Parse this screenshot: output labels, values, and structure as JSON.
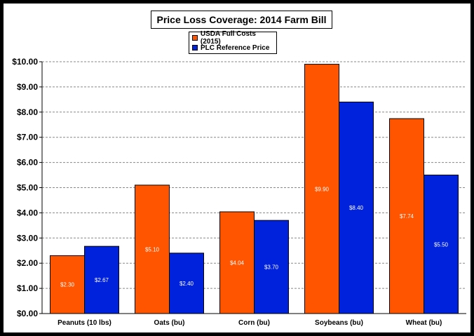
{
  "chart_data": {
    "type": "bar",
    "title": "Price Loss Coverage:  2014 Farm Bill",
    "categories": [
      "Peanuts (10 lbs)",
      "Oats (bu)",
      "Corn (bu)",
      "Soybeans (bu)",
      "Wheat (bu)"
    ],
    "series": [
      {
        "name": "USDA Full Costs (2015)",
        "color": "#ff5500",
        "values": [
          2.3,
          5.1,
          4.04,
          9.9,
          7.74
        ],
        "labels": [
          "$2.30",
          "$5.10",
          "$4.04",
          "$9.90",
          "$7.74"
        ]
      },
      {
        "name": "PLC Reference Price",
        "color": "#0022dd",
        "values": [
          2.67,
          2.4,
          3.7,
          8.4,
          5.5
        ],
        "labels": [
          "$2.67",
          "$2.40",
          "$3.70",
          "$8.40",
          "$5.50"
        ]
      }
    ],
    "ylim": [
      0,
      10
    ],
    "yticks": [
      0,
      1,
      2,
      3,
      4,
      5,
      6,
      7,
      8,
      9,
      10
    ],
    "ytick_labels": [
      "$0.00",
      "$1.00",
      "$2.00",
      "$3.00",
      "$4.00",
      "$5.00",
      "$6.00",
      "$7.00",
      "$8.00",
      "$9.00",
      "$10.00"
    ],
    "grid": true,
    "legend_position": "top-center"
  }
}
